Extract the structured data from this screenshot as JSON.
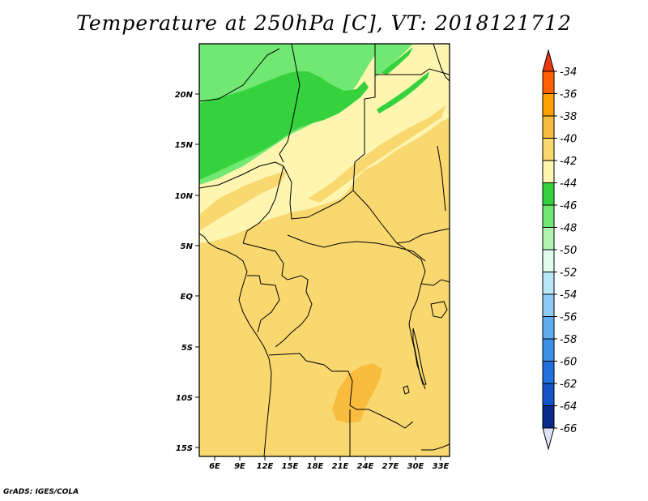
{
  "title": "Temperature at 250hPa [C], VT: 2018121712",
  "credit": "GrADS: IGES/COLA",
  "map": {
    "lon_labels": [
      "6E",
      "9E",
      "12E",
      "15E",
      "18E",
      "21E",
      "24E",
      "27E",
      "30E",
      "33E"
    ],
    "lat_labels": [
      "20N",
      "15N",
      "10N",
      "5N",
      "EQ",
      "5S",
      "10S",
      "15S"
    ],
    "lon_range": [
      4,
      34
    ],
    "lat_range": [
      -16,
      25
    ]
  },
  "colorbar": {
    "levels": [
      "-34",
      "-36",
      "-38",
      "-40",
      "-42",
      "-44",
      "-46",
      "-48",
      "-50",
      "-52",
      "-54",
      "-56",
      "-58",
      "-60",
      "-62",
      "-64",
      "-66"
    ],
    "colors": [
      "#ff6000",
      "#ff9f00",
      "#f9bc3c",
      "#f9d870",
      "#fdf5b0",
      "#36d23e",
      "#70e872",
      "#b0f4b0",
      "#e0fcf0",
      "#b8e8f8",
      "#8ccaf4",
      "#60aef0",
      "#3c90e8",
      "#2070e0",
      "#1454c8",
      "#0a2a8c"
    ],
    "top_arrow_color": "#e83810",
    "bottom_arrow_color": "#e0e0f8"
  },
  "field_colors": {
    "lt_green": "#70e872",
    "dk_green": "#36d23e",
    "pale": "#fdf5b0",
    "yellow": "#f9d870",
    "orange": "#f9bc3c"
  }
}
